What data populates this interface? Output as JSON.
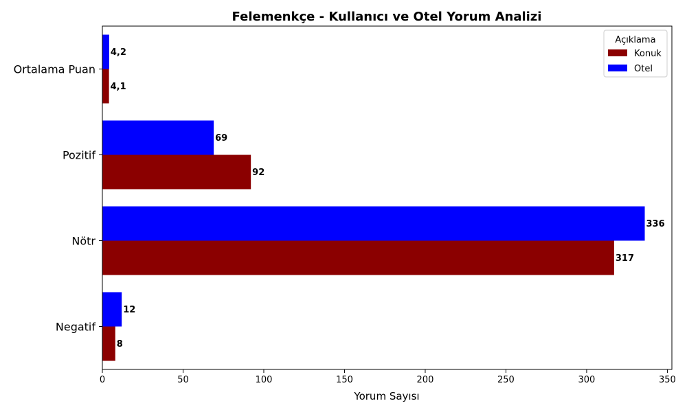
{
  "chart_data": {
    "type": "bar",
    "orientation": "horizontal",
    "title": "Felemenkçe - Kullanıcı ve Otel Yorum Analizi",
    "xlabel": "Yorum Sayısı",
    "ylabel": "",
    "xlim": [
      0,
      352.8
    ],
    "xticks": [
      0,
      50,
      100,
      150,
      200,
      250,
      300,
      350
    ],
    "categories": [
      "Ortalama Puan",
      "Pozitif",
      "Nötr",
      "Negatif"
    ],
    "series": [
      {
        "name": "Konuk",
        "color": "#8b0000",
        "values": [
          4.1,
          92,
          317,
          8
        ],
        "labels": [
          "4,1",
          "92",
          "317",
          "8"
        ]
      },
      {
        "name": "Otel",
        "color": "#0000ff",
        "values": [
          4.2,
          69,
          336,
          12
        ],
        "labels": [
          "4,2",
          "69",
          "336",
          "12"
        ]
      }
    ],
    "legend": {
      "title": "Açıklama",
      "location": "top-right"
    },
    "grid": false
  }
}
